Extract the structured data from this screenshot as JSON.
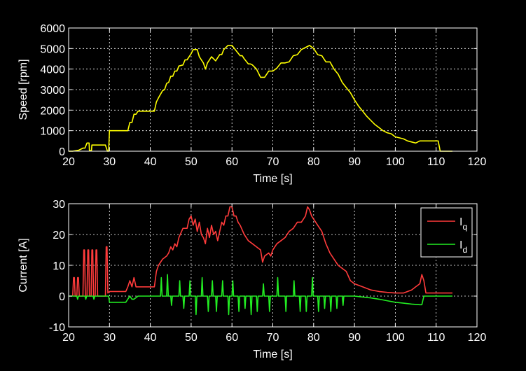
{
  "colors": {
    "background": "#000000",
    "axes": "#ffffff",
    "grid": "#ffffff",
    "speed": "#ffff00",
    "iq": "#ff3b3b",
    "id": "#22ee22"
  },
  "chart_data": [
    {
      "type": "line",
      "xlabel": "Time [s]",
      "ylabel": "Speed [rpm]",
      "xlim": [
        20,
        120
      ],
      "ylim": [
        0,
        6000
      ],
      "xticks": [
        20,
        30,
        40,
        50,
        60,
        70,
        80,
        90,
        100,
        110,
        120
      ],
      "yticks": [
        0,
        1000,
        2000,
        3000,
        4000,
        5000,
        6000
      ],
      "grid": true,
      "series": [
        {
          "name": "",
          "color": "#ffff00",
          "x": [
            20.0,
            21.0,
            22.5,
            23.5,
            24.0,
            24.5,
            25.0,
            25.1,
            25.6,
            25.7,
            26.0,
            26.5,
            28.0,
            29.0,
            29.5,
            29.8,
            30.0,
            34.5,
            35.0,
            35.5,
            36.0,
            36.5,
            37.0,
            41.0,
            41.5,
            42.0,
            43.0,
            43.5,
            44.0,
            44.5,
            45.0,
            45.5,
            46.0,
            46.5,
            47.0,
            48.0,
            48.5,
            49.0,
            50.0,
            50.5,
            51.5,
            52.0,
            53.0,
            53.5,
            54.0,
            55.0,
            56.0,
            57.0,
            57.5,
            58.0,
            59.0,
            60.0,
            61.0,
            62.0,
            62.5,
            63.0,
            64.0,
            64.5,
            65.0,
            66.0,
            67.0,
            68.0,
            69.0,
            70.0,
            71.0,
            72.0,
            73.0,
            74.0,
            75.0,
            76.0,
            77.0,
            78.0,
            79.0,
            80.0,
            81.0,
            82.0,
            83.0,
            84.0,
            85.0,
            86.0,
            87.0,
            88.0,
            89.0,
            90.0,
            91.0,
            92.0,
            93.0,
            94.0,
            95.0,
            96.0,
            97.0,
            98.0,
            99.0,
            100.0,
            101.0,
            102.0,
            103.0,
            104.0,
            105.0,
            106.0,
            107.0,
            108.0,
            109.0,
            110.0,
            110.5,
            111.0,
            112.0,
            114.0
          ],
          "y": [
            0,
            0,
            50,
            150,
            150,
            400,
            400,
            30,
            30,
            300,
            300,
            300,
            300,
            300,
            0,
            0,
            1000,
            1000,
            1400,
            1400,
            1800,
            1800,
            1950,
            1950,
            2400,
            2600,
            2950,
            3000,
            3300,
            3350,
            3650,
            3650,
            3900,
            3900,
            4150,
            4200,
            4450,
            4450,
            4750,
            4950,
            4950,
            4600,
            4300,
            4000,
            4300,
            4600,
            4400,
            4700,
            4700,
            4950,
            5150,
            5150,
            4900,
            4650,
            4650,
            4500,
            4250,
            4250,
            4200,
            4000,
            3600,
            3600,
            3900,
            3900,
            4050,
            4300,
            4300,
            4350,
            4650,
            4700,
            4950,
            5050,
            5150,
            5000,
            4700,
            4650,
            4350,
            4350,
            4000,
            3750,
            3350,
            3100,
            2850,
            2500,
            2200,
            1950,
            1700,
            1500,
            1300,
            1150,
            1000,
            900,
            850,
            700,
            650,
            600,
            500,
            450,
            400,
            500,
            500,
            500,
            500,
            500,
            500,
            0,
            0,
            0
          ]
        }
      ]
    },
    {
      "type": "line",
      "xlabel": "Time [s]",
      "ylabel": "Current [A]",
      "xlim": [
        20,
        120
      ],
      "ylim": [
        -10,
        30
      ],
      "xticks": [
        20,
        30,
        40,
        50,
        60,
        70,
        80,
        90,
        100,
        110,
        120
      ],
      "yticks": [
        -10,
        0,
        10,
        20,
        30
      ],
      "grid": true,
      "legend": "top-right",
      "series": [
        {
          "name": "I",
          "sub": "q",
          "color": "#ff3b3b",
          "x": [
            21.0,
            21.2,
            21.4,
            21.6,
            22.0,
            22.2,
            22.4,
            22.6,
            23.5,
            23.7,
            23.9,
            24.1,
            24.5,
            24.7,
            24.9,
            25.1,
            25.5,
            25.7,
            25.9,
            26.1,
            26.5,
            26.7,
            26.9,
            27.1,
            29.0,
            29.2,
            29.4,
            29.6,
            30.0,
            30.5,
            34.0,
            34.5,
            35.0,
            35.5,
            36.0,
            36.5,
            37.0,
            37.5,
            41.0,
            41.5,
            42.0,
            43.0,
            44.0,
            44.5,
            45.0,
            45.5,
            46.0,
            46.5,
            47.0,
            48.0,
            49.0,
            49.5,
            50.0,
            50.5,
            51.0,
            51.5,
            52.0,
            52.5,
            53.0,
            53.5,
            54.0,
            54.5,
            55.0,
            55.5,
            56.0,
            56.5,
            57.0,
            57.5,
            58.0,
            58.5,
            59.0,
            59.5,
            60.0,
            60.5,
            61.0,
            61.5,
            62.0,
            63.0,
            64.0,
            65.0,
            66.0,
            67.0,
            67.5,
            68.0,
            69.0,
            69.5,
            70.0,
            71.0,
            72.0,
            73.0,
            74.0,
            75.0,
            76.0,
            77.0,
            78.0,
            78.5,
            79.0,
            79.5,
            80.0,
            81.0,
            82.0,
            83.0,
            84.0,
            85.0,
            86.0,
            87.0,
            88.0,
            89.0,
            90.0,
            92.0,
            94.0,
            96.0,
            98.0,
            100.0,
            102.0,
            104.0,
            105.0,
            106.0,
            106.5,
            107.0,
            107.5,
            114.0
          ],
          "y": [
            0,
            6,
            6,
            0,
            0,
            6,
            6,
            0,
            0,
            15,
            15,
            0,
            0,
            15,
            15,
            0,
            0,
            15,
            15,
            0,
            0,
            15,
            15,
            0,
            0,
            16,
            16,
            1,
            1.5,
            1.5,
            1.5,
            3,
            5,
            3,
            6,
            3,
            3,
            3,
            3,
            8,
            10,
            12,
            13,
            14,
            16,
            15,
            17,
            16,
            19,
            22,
            22,
            25,
            26,
            23,
            25,
            21,
            24,
            20,
            19,
            17,
            22,
            19,
            23,
            20,
            21,
            18,
            21,
            24,
            23,
            26,
            26,
            29,
            29,
            26,
            26,
            24,
            23,
            20,
            18,
            17,
            16,
            15,
            11,
            13,
            14,
            13,
            15,
            17,
            18,
            19,
            21,
            22,
            24,
            24,
            26,
            29,
            28,
            26,
            25,
            23,
            21,
            17,
            14,
            12,
            10,
            9,
            8,
            5,
            4,
            3,
            2,
            1.5,
            1.2,
            1,
            1,
            2,
            3,
            4,
            7,
            5,
            1,
            1
          ]
        },
        {
          "name": "I",
          "sub": "d",
          "color": "#22ee22",
          "x": [
            20.0,
            22.0,
            22.2,
            22.4,
            24.0,
            24.2,
            24.4,
            26.0,
            26.2,
            26.4,
            29.8,
            30.0,
            30.5,
            34.0,
            35.0,
            35.5,
            36.0,
            37.0,
            41.0,
            41.5,
            42.5,
            42.7,
            42.9,
            44.0,
            44.2,
            44.4,
            45.0,
            45.2,
            45.4,
            47.0,
            47.2,
            47.4,
            48.0,
            48.2,
            48.4,
            49.5,
            49.7,
            49.9,
            51.0,
            51.2,
            51.4,
            52.5,
            52.7,
            52.9,
            54.0,
            54.2,
            54.4,
            55.0,
            55.2,
            55.4,
            56.0,
            56.2,
            56.4,
            57.5,
            57.7,
            57.9,
            59.0,
            59.2,
            59.4,
            60.0,
            60.2,
            60.4,
            61.5,
            61.7,
            61.9,
            63.0,
            63.2,
            63.4,
            64.5,
            64.7,
            64.9,
            66.0,
            66.2,
            66.4,
            67.5,
            67.7,
            67.9,
            69.0,
            69.2,
            69.4,
            71.0,
            71.2,
            71.4,
            73.0,
            73.2,
            73.4,
            75.0,
            75.2,
            75.4,
            76.5,
            76.7,
            76.9,
            78.0,
            78.2,
            78.4,
            79.5,
            79.7,
            79.9,
            81.0,
            81.2,
            81.4,
            82.5,
            82.7,
            82.9,
            84.0,
            84.2,
            84.4,
            85.5,
            85.7,
            85.9,
            87.0,
            87.2,
            87.4,
            88.0,
            90.0,
            92.0,
            94.0,
            96.0,
            98.0,
            100.0,
            102.0,
            104.0,
            106.0,
            106.5,
            107.0,
            114.0
          ],
          "y": [
            0,
            0,
            -1,
            0,
            0,
            -1,
            0,
            0,
            -1,
            0,
            0,
            -2,
            -2,
            -2,
            0,
            -1,
            -1,
            0,
            0,
            0,
            0,
            6,
            0,
            0,
            7,
            0,
            0,
            -3,
            0,
            0,
            5,
            0,
            0,
            -4,
            0,
            0,
            5,
            0,
            0,
            -6,
            0,
            0,
            6,
            0,
            0,
            -5,
            0,
            0,
            5,
            0,
            0,
            -5,
            0,
            0,
            5,
            0,
            0,
            -6,
            0,
            0,
            5,
            0,
            0,
            -5,
            0,
            0,
            -4,
            0,
            0,
            -6,
            0,
            0,
            -5,
            0,
            0,
            4,
            0,
            0,
            -5,
            0,
            0,
            6,
            0,
            0,
            -5,
            0,
            0,
            5,
            0,
            0,
            -5,
            0,
            0,
            -5,
            0,
            0,
            6,
            0,
            0,
            -5,
            0,
            0,
            -4,
            0,
            0,
            -5,
            0,
            0,
            -4,
            0,
            0,
            -3,
            0,
            0,
            0,
            -0.3,
            -0.6,
            -1,
            -1.5,
            -2,
            -2.3,
            -2.6,
            -2.8,
            -2.8,
            0,
            0
          ]
        }
      ]
    }
  ]
}
